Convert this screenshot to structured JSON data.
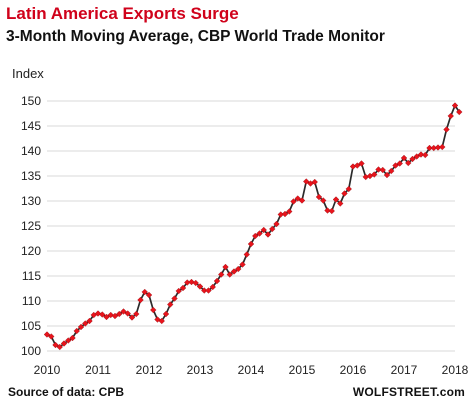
{
  "title": "Latin America Exports Surge",
  "subtitle": "3-Month Moving Average, CBP World Trade Monitor",
  "ylabel": "Index",
  "source": "Source of data: CPB",
  "brand": "WOLFSTREET.com",
  "colors": {
    "title": "#d0021b",
    "line": "#2b2b2b",
    "marker": "#e8141c",
    "grid": "#d9d9d9"
  },
  "chart_data": {
    "type": "line",
    "title": "Latin America Exports Surge",
    "subtitle": "3-Month Moving Average, CBP World Trade Monitor",
    "ylabel": "Index",
    "xlabel": "",
    "ylim": [
      100,
      150
    ],
    "yticks": [
      100,
      105,
      110,
      115,
      120,
      125,
      130,
      135,
      140,
      145,
      150
    ],
    "xlim": [
      2010,
      2018
    ],
    "xticks": [
      "2010",
      "2011",
      "2012",
      "2013",
      "2014",
      "2015",
      "2016",
      "2017",
      "2018"
    ],
    "grid": "horizontal",
    "x_start": "2010-01",
    "frequency": "monthly",
    "series": [
      {
        "values": [
          103.3,
          102.9,
          101.2,
          100.8,
          101.5,
          102.1,
          102.6,
          104.0,
          104.8,
          105.5,
          106.0,
          107.2,
          107.5,
          107.3,
          106.8,
          107.2,
          107.0,
          107.4,
          107.9,
          107.5,
          106.7,
          107.4,
          110.2,
          111.8,
          111.2,
          108.2,
          106.3,
          106.0,
          107.4,
          109.3,
          110.5,
          112.0,
          112.6,
          113.7,
          113.8,
          113.6,
          112.9,
          112.1,
          112.1,
          112.8,
          114.0,
          115.3,
          116.8,
          115.3,
          115.9,
          116.4,
          117.3,
          119.3,
          121.4,
          123.0,
          123.5,
          124.2,
          123.3,
          124.4,
          125.4,
          127.3,
          127.4,
          127.9,
          129.9,
          130.5,
          130.1,
          133.9,
          133.5,
          133.8,
          130.8,
          130.1,
          128.1,
          128.0,
          130.3,
          129.5,
          131.5,
          132.4,
          136.9,
          137.1,
          137.5,
          134.8,
          135.0,
          135.3,
          136.3,
          136.2,
          135.2,
          136.0,
          137.1,
          137.5,
          138.6,
          137.6,
          138.4,
          138.9,
          139.3,
          139.2,
          140.6,
          140.6,
          140.7,
          140.8,
          144.3,
          147.0,
          149.1,
          147.8
        ]
      }
    ]
  }
}
